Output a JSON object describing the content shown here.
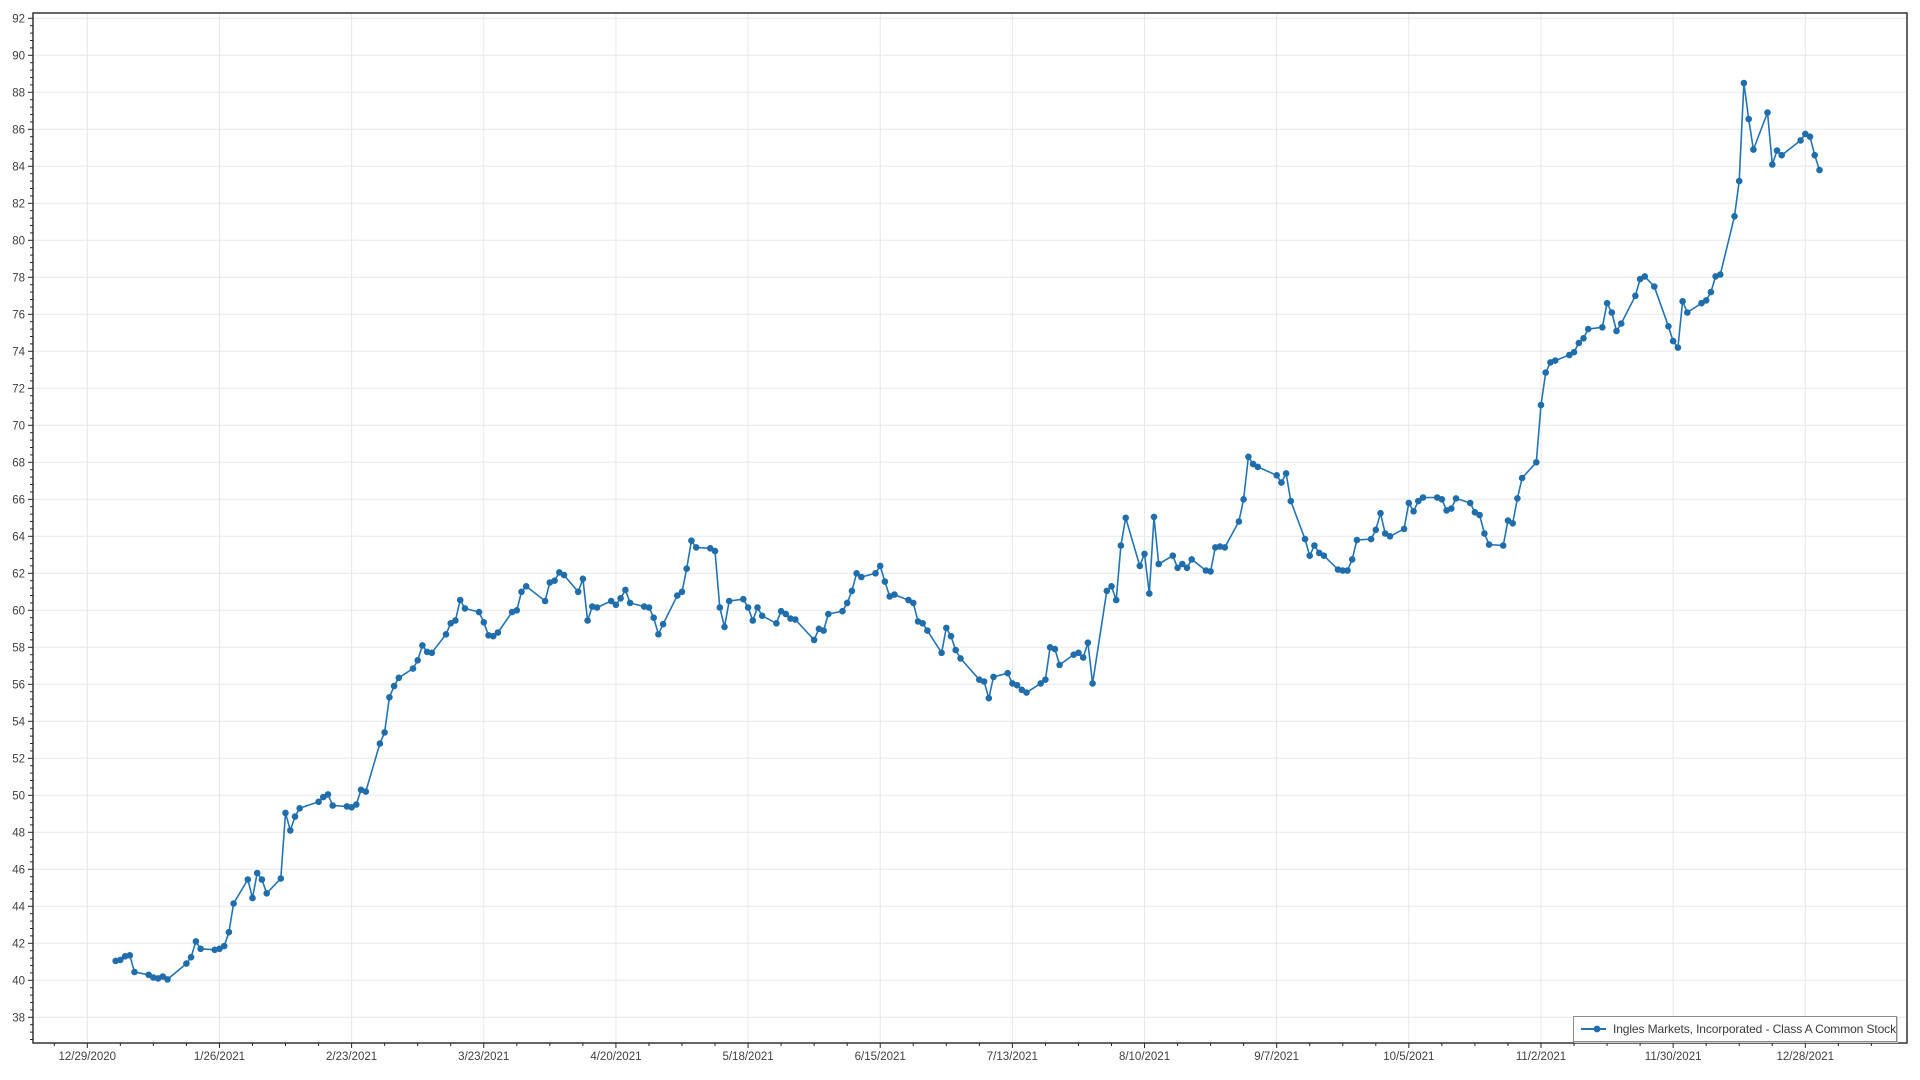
{
  "legend": {
    "label": "Ingles Markets, Incorporated - Class A Common Stock"
  },
  "chart_data": {
    "type": "line",
    "title": "",
    "series_name": "Ingles Markets, Incorporated - Class A Common Stock",
    "legend_position": "bottom-right",
    "grid": true,
    "colors": {
      "line": "#2374b5",
      "marker": "#1f6dab",
      "grid": "#e8e8e8",
      "axis": "#262626",
      "tick_label": "#404040",
      "background": "#ffffff"
    },
    "xlabel": "",
    "ylabel": "",
    "y_axis": {
      "min": 38,
      "max": 92,
      "tick_step": 2
    },
    "y_ticks": [
      92,
      90,
      88,
      86,
      84,
      82,
      80,
      78,
      76,
      74,
      72,
      70,
      68,
      66,
      64,
      62,
      60,
      58,
      56,
      54,
      52,
      50,
      48,
      46,
      44,
      42,
      40,
      38
    ],
    "x_ticks": [
      "12/29/2020",
      "1/26/2021",
      "2/23/2021",
      "3/23/2021",
      "4/20/2021",
      "5/18/2021",
      "6/15/2021",
      "7/13/2021",
      "8/10/2021",
      "9/7/2021",
      "10/5/2021",
      "11/2/2021",
      "11/30/2021",
      "12/28/2021"
    ],
    "points": [
      [
        "1/4/2021",
        41.05
      ],
      [
        "1/5/2021",
        41.1
      ],
      [
        "1/6/2021",
        41.3
      ],
      [
        "1/7/2021",
        41.35
      ],
      [
        "1/8/2021",
        40.45
      ],
      [
        "1/11/2021",
        40.3
      ],
      [
        "1/12/2021",
        40.15
      ],
      [
        "1/13/2021",
        40.1
      ],
      [
        "1/14/2021",
        40.2
      ],
      [
        "1/15/2021",
        40.05
      ],
      [
        "1/19/2021",
        40.9
      ],
      [
        "1/20/2021",
        41.25
      ],
      [
        "1/21/2021",
        42.1
      ],
      [
        "1/22/2021",
        41.7
      ],
      [
        "1/25/2021",
        41.65
      ],
      [
        "1/26/2021",
        41.7
      ],
      [
        "1/27/2021",
        41.85
      ],
      [
        "1/28/2021",
        42.6
      ],
      [
        "1/29/2021",
        44.15
      ],
      [
        "2/1/2021",
        45.45
      ],
      [
        "2/2/2021",
        44.45
      ],
      [
        "2/3/2021",
        45.8
      ],
      [
        "2/4/2021",
        45.45
      ],
      [
        "2/5/2021",
        44.7
      ],
      [
        "2/8/2021",
        45.5
      ],
      [
        "2/9/2021",
        49.05
      ],
      [
        "2/10/2021",
        48.1
      ],
      [
        "2/11/2021",
        48.85
      ],
      [
        "2/12/2021",
        49.3
      ],
      [
        "2/16/2021",
        49.65
      ],
      [
        "2/17/2021",
        49.9
      ],
      [
        "2/18/2021",
        50.05
      ],
      [
        "2/19/2021",
        49.45
      ],
      [
        "2/22/2021",
        49.4
      ],
      [
        "2/23/2021",
        49.35
      ],
      [
        "2/24/2021",
        49.5
      ],
      [
        "2/25/2021",
        50.3
      ],
      [
        "2/26/2021",
        50.2
      ],
      [
        "3/1/2021",
        52.8
      ],
      [
        "3/2/2021",
        53.4
      ],
      [
        "3/3/2021",
        55.3
      ],
      [
        "3/4/2021",
        55.9
      ],
      [
        "3/5/2021",
        56.35
      ],
      [
        "3/8/2021",
        56.85
      ],
      [
        "3/9/2021",
        57.3
      ],
      [
        "3/10/2021",
        58.1
      ],
      [
        "3/11/2021",
        57.75
      ],
      [
        "3/12/2021",
        57.7
      ],
      [
        "3/15/2021",
        58.7
      ],
      [
        "3/16/2021",
        59.3
      ],
      [
        "3/17/2021",
        59.45
      ],
      [
        "3/18/2021",
        60.55
      ],
      [
        "3/19/2021",
        60.1
      ],
      [
        "3/22/2021",
        59.9
      ],
      [
        "3/23/2021",
        59.35
      ],
      [
        "3/24/2021",
        58.65
      ],
      [
        "3/25/2021",
        58.6
      ],
      [
        "3/26/2021",
        58.8
      ],
      [
        "3/29/2021",
        59.9
      ],
      [
        "3/30/2021",
        60.0
      ],
      [
        "3/31/2021",
        61.0
      ],
      [
        "4/1/2021",
        61.3
      ],
      [
        "4/5/2021",
        60.5
      ],
      [
        "4/6/2021",
        61.5
      ],
      [
        "4/7/2021",
        61.6
      ],
      [
        "4/8/2021",
        62.05
      ],
      [
        "4/9/2021",
        61.9
      ],
      [
        "4/12/2021",
        61.0
      ],
      [
        "4/13/2021",
        61.7
      ],
      [
        "4/14/2021",
        59.45
      ],
      [
        "4/15/2021",
        60.2
      ],
      [
        "4/16/2021",
        60.15
      ],
      [
        "4/19/2021",
        60.5
      ],
      [
        "4/20/2021",
        60.3
      ],
      [
        "4/21/2021",
        60.65
      ],
      [
        "4/22/2021",
        61.1
      ],
      [
        "4/23/2021",
        60.4
      ],
      [
        "4/26/2021",
        60.2
      ],
      [
        "4/27/2021",
        60.15
      ],
      [
        "4/28/2021",
        59.6
      ],
      [
        "4/29/2021",
        58.7
      ],
      [
        "4/30/2021",
        59.25
      ],
      [
        "5/3/2021",
        60.8
      ],
      [
        "5/4/2021",
        61.0
      ],
      [
        "5/5/2021",
        62.25
      ],
      [
        "5/6/2021",
        63.76
      ],
      [
        "5/7/2021",
        63.4
      ],
      [
        "5/10/2021",
        63.35
      ],
      [
        "5/11/2021",
        63.2
      ],
      [
        "5/12/2021",
        60.15
      ],
      [
        "5/13/2021",
        59.1
      ],
      [
        "5/14/2021",
        60.5
      ],
      [
        "5/17/2021",
        60.6
      ],
      [
        "5/18/2021",
        60.15
      ],
      [
        "5/19/2021",
        59.45
      ],
      [
        "5/20/2021",
        60.15
      ],
      [
        "5/21/2021",
        59.7
      ],
      [
        "5/24/2021",
        59.3
      ],
      [
        "5/25/2021",
        59.95
      ],
      [
        "5/26/2021",
        59.8
      ],
      [
        "5/27/2021",
        59.55
      ],
      [
        "5/28/2021",
        59.5
      ],
      [
        "6/1/2021",
        58.4
      ],
      [
        "6/2/2021",
        59.0
      ],
      [
        "6/3/2021",
        58.9
      ],
      [
        "6/4/2021",
        59.8
      ],
      [
        "6/7/2021",
        59.95
      ],
      [
        "6/8/2021",
        60.4
      ],
      [
        "6/9/2021",
        61.05
      ],
      [
        "6/10/2021",
        62.0
      ],
      [
        "6/11/2021",
        61.8
      ],
      [
        "6/14/2021",
        62.0
      ],
      [
        "6/15/2021",
        62.4
      ],
      [
        "6/16/2021",
        61.55
      ],
      [
        "6/17/2021",
        60.75
      ],
      [
        "6/18/2021",
        60.85
      ],
      [
        "6/21/2021",
        60.55
      ],
      [
        "6/22/2021",
        60.4
      ],
      [
        "6/23/2021",
        59.4
      ],
      [
        "6/24/2021",
        59.3
      ],
      [
        "6/25/2021",
        58.9
      ],
      [
        "6/28/2021",
        57.7
      ],
      [
        "6/29/2021",
        59.05
      ],
      [
        "6/30/2021",
        58.6
      ],
      [
        "7/1/2021",
        57.85
      ],
      [
        "7/2/2021",
        57.4
      ],
      [
        "7/6/2021",
        56.25
      ],
      [
        "7/7/2021",
        56.15
      ],
      [
        "7/8/2021",
        55.25
      ],
      [
        "7/9/2021",
        56.4
      ],
      [
        "7/12/2021",
        56.6
      ],
      [
        "7/13/2021",
        56.05
      ],
      [
        "7/14/2021",
        55.95
      ],
      [
        "7/15/2021",
        55.7
      ],
      [
        "7/16/2021",
        55.55
      ],
      [
        "7/19/2021",
        56.05
      ],
      [
        "7/20/2021",
        56.25
      ],
      [
        "7/21/2021",
        58.0
      ],
      [
        "7/22/2021",
        57.9
      ],
      [
        "7/23/2021",
        57.05
      ],
      [
        "7/26/2021",
        57.6
      ],
      [
        "7/27/2021",
        57.7
      ],
      [
        "7/28/2021",
        57.45
      ],
      [
        "7/29/2021",
        58.25
      ],
      [
        "7/30/2021",
        56.05
      ],
      [
        "8/2/2021",
        61.05
      ],
      [
        "8/3/2021",
        61.3
      ],
      [
        "8/4/2021",
        60.55
      ],
      [
        "8/5/2021",
        63.5
      ],
      [
        "8/6/2021",
        65.0
      ],
      [
        "8/9/2021",
        62.4
      ],
      [
        "8/10/2021",
        63.05
      ],
      [
        "8/11/2021",
        60.9
      ],
      [
        "8/12/2021",
        65.05
      ],
      [
        "8/13/2021",
        62.5
      ],
      [
        "8/16/2021",
        62.95
      ],
      [
        "8/17/2021",
        62.3
      ],
      [
        "8/18/2021",
        62.5
      ],
      [
        "8/19/2021",
        62.3
      ],
      [
        "8/20/2021",
        62.75
      ],
      [
        "8/23/2021",
        62.15
      ],
      [
        "8/24/2021",
        62.1
      ],
      [
        "8/25/2021",
        63.4
      ],
      [
        "8/26/2021",
        63.45
      ],
      [
        "8/27/2021",
        63.4
      ],
      [
        "8/30/2021",
        64.8
      ],
      [
        "8/31/2021",
        66.0
      ],
      [
        "9/1/2021",
        68.3
      ],
      [
        "9/2/2021",
        67.9
      ],
      [
        "9/3/2021",
        67.75
      ],
      [
        "9/7/2021",
        67.3
      ],
      [
        "9/8/2021",
        66.9
      ],
      [
        "9/9/2021",
        67.4
      ],
      [
        "9/10/2021",
        65.9
      ],
      [
        "9/13/2021",
        63.85
      ],
      [
        "9/14/2021",
        62.95
      ],
      [
        "9/15/2021",
        63.5
      ],
      [
        "9/16/2021",
        63.1
      ],
      [
        "9/17/2021",
        62.95
      ],
      [
        "9/20/2021",
        62.2
      ],
      [
        "9/21/2021",
        62.15
      ],
      [
        "9/22/2021",
        62.15
      ],
      [
        "9/23/2021",
        62.75
      ],
      [
        "9/24/2021",
        63.8
      ],
      [
        "9/27/2021",
        63.85
      ],
      [
        "9/28/2021",
        64.35
      ],
      [
        "9/29/2021",
        65.25
      ],
      [
        "9/30/2021",
        64.15
      ],
      [
        "10/1/2021",
        64.0
      ],
      [
        "10/4/2021",
        64.4
      ],
      [
        "10/5/2021",
        65.8
      ],
      [
        "10/6/2021",
        65.35
      ],
      [
        "10/7/2021",
        65.9
      ],
      [
        "10/8/2021",
        66.1
      ],
      [
        "10/11/2021",
        66.1
      ],
      [
        "10/12/2021",
        66.0
      ],
      [
        "10/13/2021",
        65.4
      ],
      [
        "10/14/2021",
        65.5
      ],
      [
        "10/15/2021",
        66.05
      ],
      [
        "10/18/2021",
        65.8
      ],
      [
        "10/19/2021",
        65.3
      ],
      [
        "10/20/2021",
        65.15
      ],
      [
        "10/21/2021",
        64.15
      ],
      [
        "10/22/2021",
        63.55
      ],
      [
        "10/25/2021",
        63.5
      ],
      [
        "10/26/2021",
        64.85
      ],
      [
        "10/27/2021",
        64.7
      ],
      [
        "10/28/2021",
        66.05
      ],
      [
        "10/29/2021",
        67.15
      ],
      [
        "11/1/2021",
        68.0
      ],
      [
        "11/2/2021",
        71.1
      ],
      [
        "11/3/2021",
        72.85
      ],
      [
        "11/4/2021",
        73.4
      ],
      [
        "11/5/2021",
        73.5
      ],
      [
        "11/8/2021",
        73.8
      ],
      [
        "11/9/2021",
        73.95
      ],
      [
        "11/10/2021",
        74.45
      ],
      [
        "11/11/2021",
        74.7
      ],
      [
        "11/12/2021",
        75.2
      ],
      [
        "11/15/2021",
        75.3
      ],
      [
        "11/16/2021",
        76.6
      ],
      [
        "11/17/2021",
        76.1
      ],
      [
        "11/18/2021",
        75.1
      ],
      [
        "11/19/2021",
        75.5
      ],
      [
        "11/22/2021",
        77.0
      ],
      [
        "11/23/2021",
        77.9
      ],
      [
        "11/24/2021",
        78.05
      ],
      [
        "11/26/2021",
        77.5
      ],
      [
        "11/29/2021",
        75.35
      ],
      [
        "11/30/2021",
        74.55
      ],
      [
        "12/1/2021",
        74.2
      ],
      [
        "12/2/2021",
        76.7
      ],
      [
        "12/3/2021",
        76.1
      ],
      [
        "12/6/2021",
        76.6
      ],
      [
        "12/7/2021",
        76.75
      ],
      [
        "12/8/2021",
        77.2
      ],
      [
        "12/9/2021",
        78.05
      ],
      [
        "12/10/2021",
        78.15
      ],
      [
        "12/13/2021",
        81.3
      ],
      [
        "12/14/2021",
        83.2
      ],
      [
        "12/15/2021",
        88.5
      ],
      [
        "12/16/2021",
        86.55
      ],
      [
        "12/17/2021",
        84.9
      ],
      [
        "12/20/2021",
        86.9
      ],
      [
        "12/21/2021",
        84.1
      ],
      [
        "12/22/2021",
        84.85
      ],
      [
        "12/23/2021",
        84.6
      ],
      [
        "12/27/2021",
        85.4
      ],
      [
        "12/28/2021",
        85.75
      ],
      [
        "12/29/2021",
        85.6
      ],
      [
        "12/30/2021",
        84.6
      ],
      [
        "12/31/2021",
        83.8
      ]
    ]
  }
}
